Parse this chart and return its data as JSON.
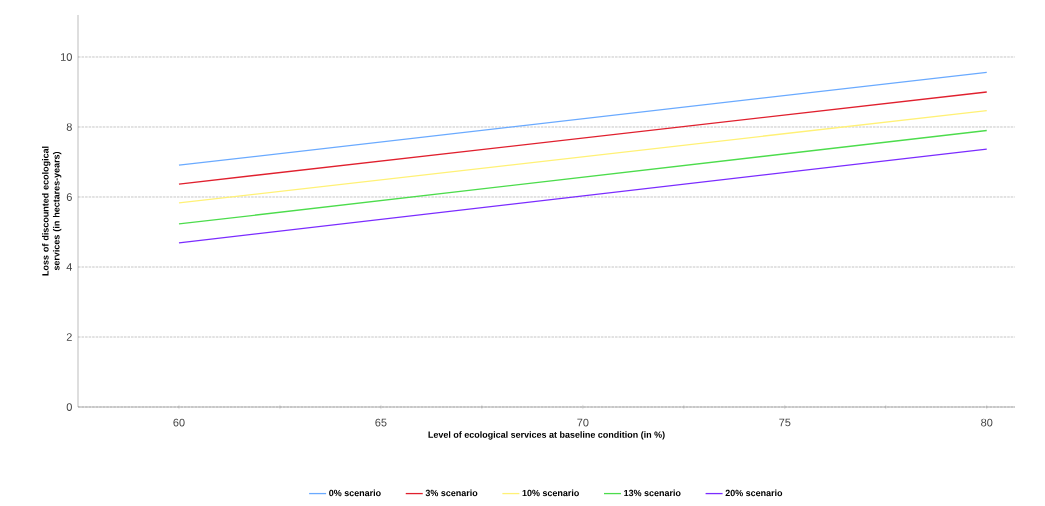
{
  "chart_data": {
    "type": "line",
    "xlabel": "Level of ecological services at baseline condition (in %)",
    "ylabel": "Loss of discounted ecological services (in hectares-years)",
    "x": [
      60,
      80
    ],
    "series": [
      {
        "name": "0% scenario",
        "color": "#6aaaff",
        "values": [
          6.91,
          9.56
        ]
      },
      {
        "name": "3% scenario",
        "color": "#e0202e",
        "values": [
          6.37,
          9.0
        ]
      },
      {
        "name": "10% scenario",
        "color": "#fff176",
        "values": [
          5.83,
          8.47
        ]
      },
      {
        "name": "13% scenario",
        "color": "#4cdc4c",
        "values": [
          5.23,
          7.9
        ]
      },
      {
        "name": "20% scenario",
        "color": "#7b2cff",
        "values": [
          4.69,
          7.37
        ]
      }
    ],
    "xlim": [
      57.5,
      80.7
    ],
    "ylim": [
      0,
      11.2
    ],
    "xticks": [
      60,
      {
        "value": 62.5,
        "label": null
      },
      65,
      {
        "value": 67.5,
        "label": null
      },
      70,
      {
        "value": 72.5,
        "label": null
      },
      75,
      {
        "value": 77.5,
        "label": null
      },
      80
    ],
    "yticks": [
      0,
      2,
      4,
      6,
      8,
      10
    ],
    "grid": "y",
    "legend": "bottom",
    "marker": "none",
    "line_style": "solid"
  }
}
